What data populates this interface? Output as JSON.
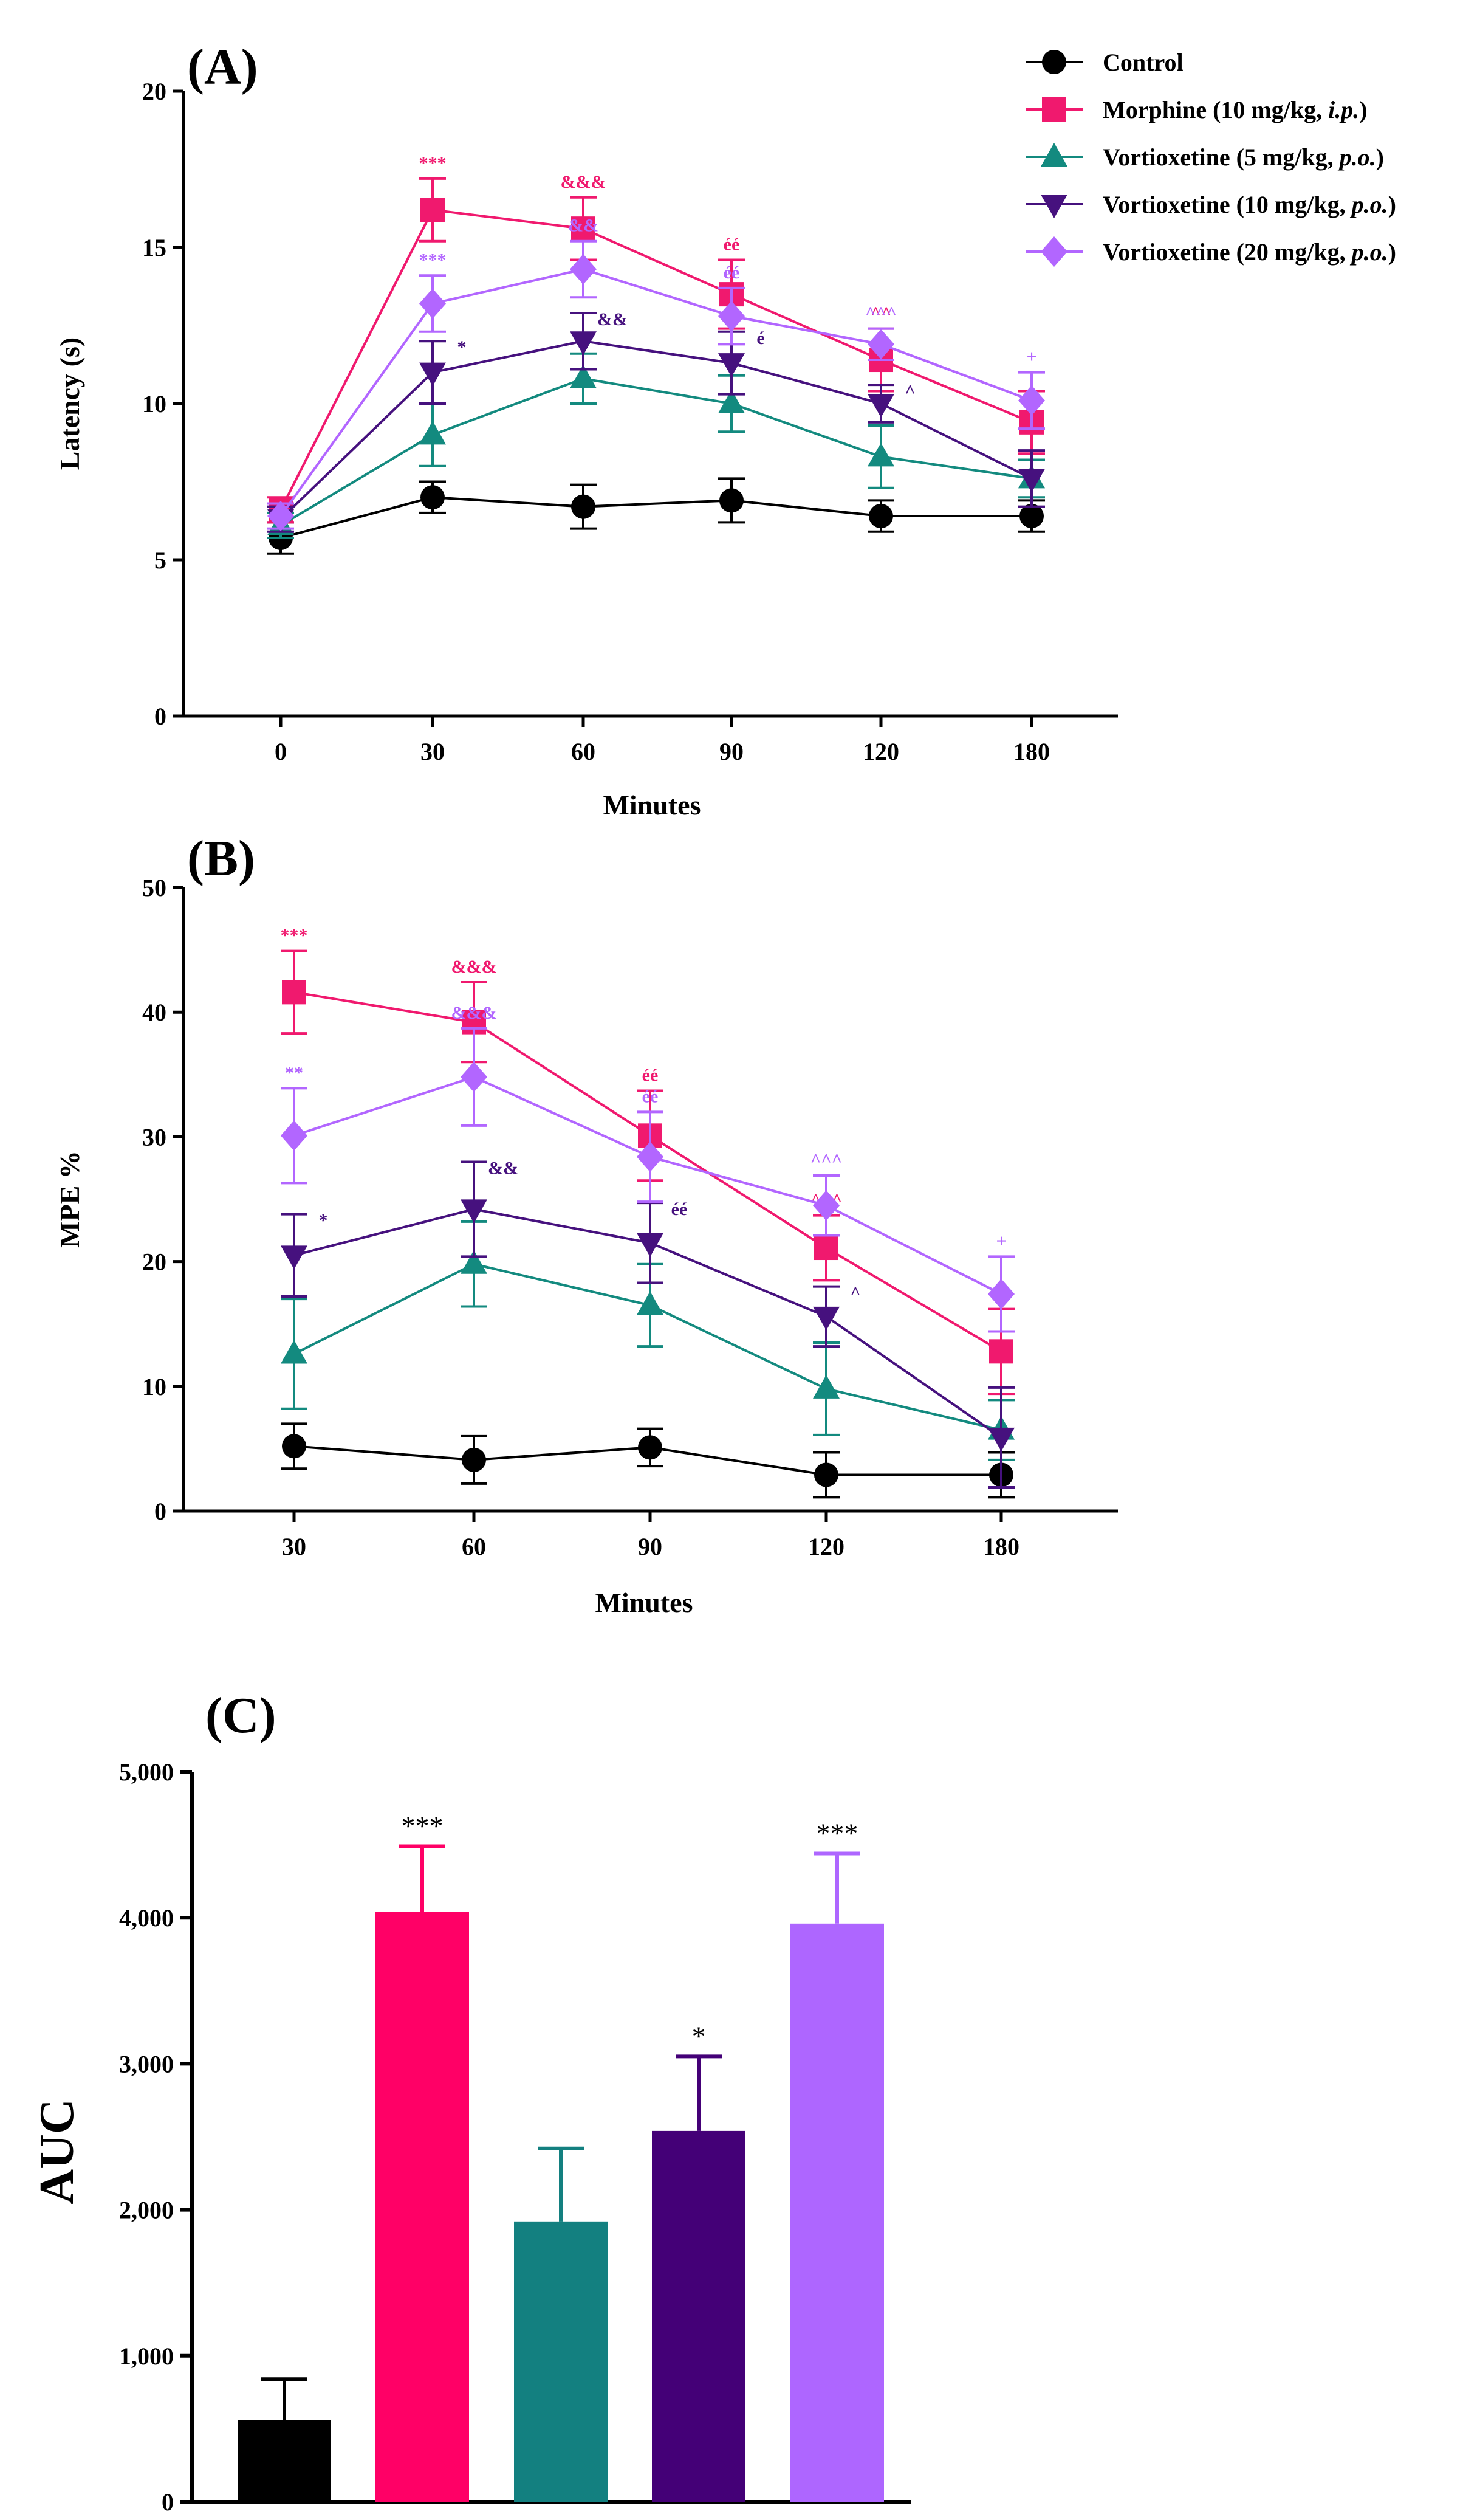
{
  "chart_data": [
    {
      "panel": "(A)",
      "type": "line",
      "xlabel": "Minutes",
      "ylabel": "Latency (s)",
      "categories": [
        "0",
        "30",
        "60",
        "90",
        "120",
        "180"
      ],
      "ylim": [
        0,
        20
      ],
      "yticks": [
        "0",
        "5",
        "10",
        "15",
        "20"
      ],
      "series": [
        {
          "name": "Control",
          "color": "#000000",
          "marker": "circle",
          "values": [
            5.7,
            7.0,
            6.7,
            6.9,
            6.4,
            6.4
          ],
          "errors": [
            0.5,
            0.5,
            0.7,
            0.7,
            0.5,
            0.5
          ]
        },
        {
          "name": "Morphine (10 mg/kg, i.p.)",
          "color": "#F0196E",
          "marker": "square",
          "values": [
            6.6,
            16.2,
            15.6,
            13.5,
            11.4,
            9.4
          ],
          "errors": [
            0.4,
            1.0,
            1.0,
            1.1,
            1.0,
            1.0
          ],
          "annotations": [
            "",
            "***",
            "&&&",
            "éé",
            "^^",
            ""
          ]
        },
        {
          "name": "Vortioxetine (5 mg/kg, p.o.)",
          "color": "#138A7F",
          "marker": "triangle-up",
          "values": [
            6.1,
            9.0,
            10.8,
            10.0,
            8.3,
            7.6
          ],
          "errors": [
            0.4,
            1.0,
            0.8,
            0.9,
            1.0,
            0.6
          ],
          "annotations": [
            "",
            "",
            "&",
            "",
            "",
            ""
          ]
        },
        {
          "name": "Vortioxetine (10 mg/kg, p.o.)",
          "color": "#46117E",
          "marker": "triangle-down",
          "values": [
            6.3,
            11.0,
            12.0,
            11.3,
            10.0,
            7.6
          ],
          "errors": [
            0.4,
            1.0,
            0.9,
            1.0,
            0.6,
            0.9
          ],
          "annotations": [
            "",
            "*",
            "&&",
            "é",
            "^",
            ""
          ]
        },
        {
          "name": "Vortioxetine (20 mg/kg, p.o.)",
          "color": "#B266FF",
          "marker": "diamond",
          "values": [
            6.4,
            13.2,
            14.3,
            12.8,
            11.9,
            10.1
          ],
          "errors": [
            0.4,
            0.9,
            0.9,
            0.9,
            0.5,
            0.9
          ],
          "annotations": [
            "",
            "***",
            "&&",
            "éé",
            "^^^",
            "+"
          ]
        }
      ]
    },
    {
      "panel": "(B)",
      "type": "line",
      "xlabel": "Minutes",
      "ylabel": "MPE %",
      "categories": [
        "30",
        "60",
        "90",
        "120",
        "180"
      ],
      "ylim": [
        0,
        50
      ],
      "yticks": [
        "0",
        "10",
        "20",
        "30",
        "40",
        "50"
      ],
      "series": [
        {
          "name": "Control",
          "color": "#000000",
          "marker": "circle",
          "values": [
            5.2,
            4.1,
            5.1,
            2.9,
            2.9
          ],
          "errors": [
            1.8,
            1.9,
            1.5,
            1.8,
            1.8
          ]
        },
        {
          "name": "Morphine (10 mg/kg, i.p.)",
          "color": "#F0196E",
          "marker": "square",
          "values": [
            41.6,
            39.2,
            30.1,
            21.1,
            12.8
          ],
          "errors": [
            3.3,
            3.2,
            3.6,
            2.6,
            3.4
          ],
          "annotations": [
            "***",
            "&&&",
            "éé",
            "^^^",
            ""
          ]
        },
        {
          "name": "Vortioxetine (5 mg/kg, p.o.)",
          "color": "#138A7F",
          "marker": "triangle-up",
          "values": [
            12.6,
            19.8,
            16.5,
            9.8,
            6.5
          ],
          "errors": [
            4.4,
            3.4,
            3.3,
            3.7,
            2.4
          ],
          "annotations": [
            "",
            "&",
            "",
            "",
            ""
          ]
        },
        {
          "name": "Vortioxetine (10 mg/kg, p.o.)",
          "color": "#46117E",
          "marker": "triangle-down",
          "values": [
            20.5,
            24.2,
            21.5,
            15.6,
            5.9
          ],
          "errors": [
            3.3,
            3.8,
            3.2,
            2.4,
            4.0
          ],
          "annotations": [
            "*",
            "&&",
            "éé",
            "^",
            ""
          ]
        },
        {
          "name": "Vortioxetine (20 mg/kg, p.o.)",
          "color": "#B266FF",
          "marker": "diamond",
          "values": [
            30.1,
            34.8,
            28.4,
            24.5,
            17.4
          ],
          "errors": [
            3.8,
            3.9,
            3.6,
            2.4,
            3.0
          ],
          "annotations": [
            "**",
            "&&&",
            "éé",
            "^^^",
            "+"
          ]
        }
      ]
    },
    {
      "panel": "(C)",
      "type": "bar",
      "xlabel": "",
      "ylabel": "AUC",
      "categories": [
        "Control",
        "Morphine (10 mg/kg, i.p.)",
        "Vortioxetine (5 mg/kg, p.o.)",
        "Vortioxetine (10 mg/kg, p.o.)",
        "Vortioxetine (20 mg/kg, p.o.)"
      ],
      "values": [
        560,
        4040,
        1920,
        2540,
        3960
      ],
      "errors": [
        280,
        450,
        500,
        510,
        480
      ],
      "colors": [
        "#000000",
        "#FF0066",
        "#138080",
        "#440077",
        "#AE66FF"
      ],
      "annotations": [
        "",
        "***",
        "",
        "*",
        "***"
      ],
      "ylim": [
        0,
        5000
      ],
      "yticks": [
        "0",
        "1,000",
        "2,000",
        "3,000",
        "4,000",
        "5,000"
      ]
    }
  ],
  "legend": [
    {
      "prefix": "Control",
      "italic": "",
      "suffix": ""
    },
    {
      "prefix": "Morphine (10 mg/kg, ",
      "italic": "i.p.",
      "suffix": ")"
    },
    {
      "prefix": "Vortioxetine (5 mg/kg, ",
      "italic": "p.o.",
      "suffix": ")"
    },
    {
      "prefix": "Vortioxetine (10 mg/kg, ",
      "italic": "p.o.",
      "suffix": ")"
    },
    {
      "prefix": "Vortioxetine (20 mg/kg, ",
      "italic": "p.o.",
      "suffix": ")"
    }
  ]
}
